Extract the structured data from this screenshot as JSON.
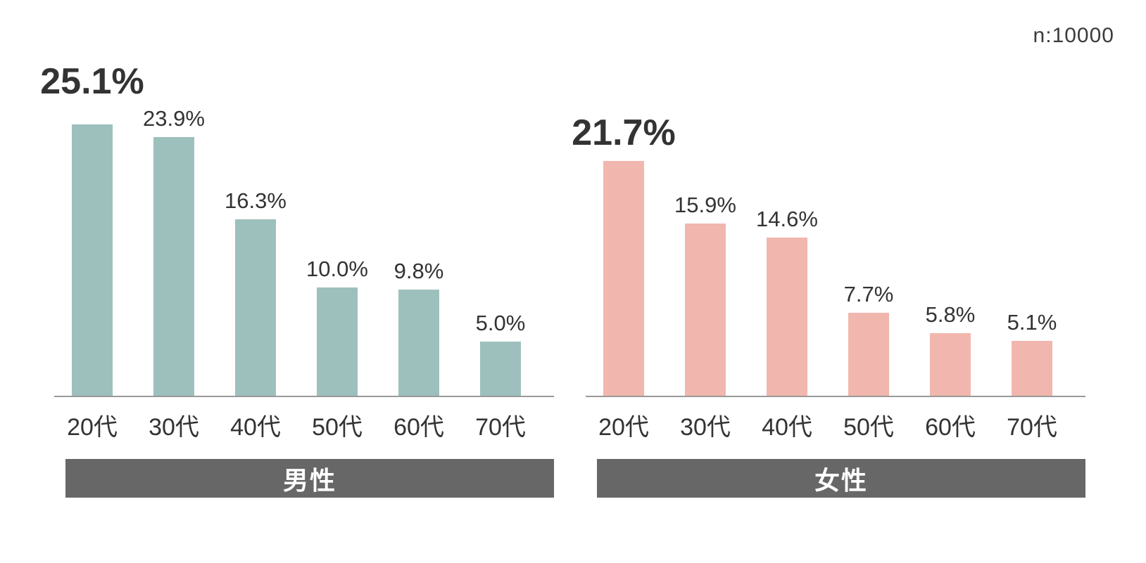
{
  "annotation": {
    "sample_size": "n:10000"
  },
  "chart_data": {
    "type": "bar",
    "categories": [
      "20代",
      "30代",
      "40代",
      "50代",
      "60代",
      "70代"
    ],
    "series": [
      {
        "name": "男性",
        "values": [
          25.1,
          23.9,
          16.3,
          10.0,
          9.8,
          5.0
        ],
        "color": "#9dc0bd"
      },
      {
        "name": "女性",
        "values": [
          21.7,
          15.9,
          14.6,
          7.7,
          5.8,
          5.1
        ],
        "color": "#f1b7ae"
      }
    ],
    "value_suffix": "%",
    "value_labels": [
      [
        "25.1%",
        "23.9%",
        "16.3%",
        "10.0%",
        "9.8%",
        "5.0%"
      ],
      [
        "21.7%",
        "15.9%",
        "14.6%",
        "7.7%",
        "5.8%",
        "5.1%"
      ]
    ],
    "highlight_index": 0,
    "title": "",
    "xlabel": "",
    "ylabel": "",
    "ylim": [
      0,
      27
    ],
    "grid": false,
    "legend_position": "banner-below-each-chart",
    "axis_color": "#999999",
    "banner_color": "#676767",
    "banner_text_color": "#ffffff",
    "label_color": "#333333"
  }
}
